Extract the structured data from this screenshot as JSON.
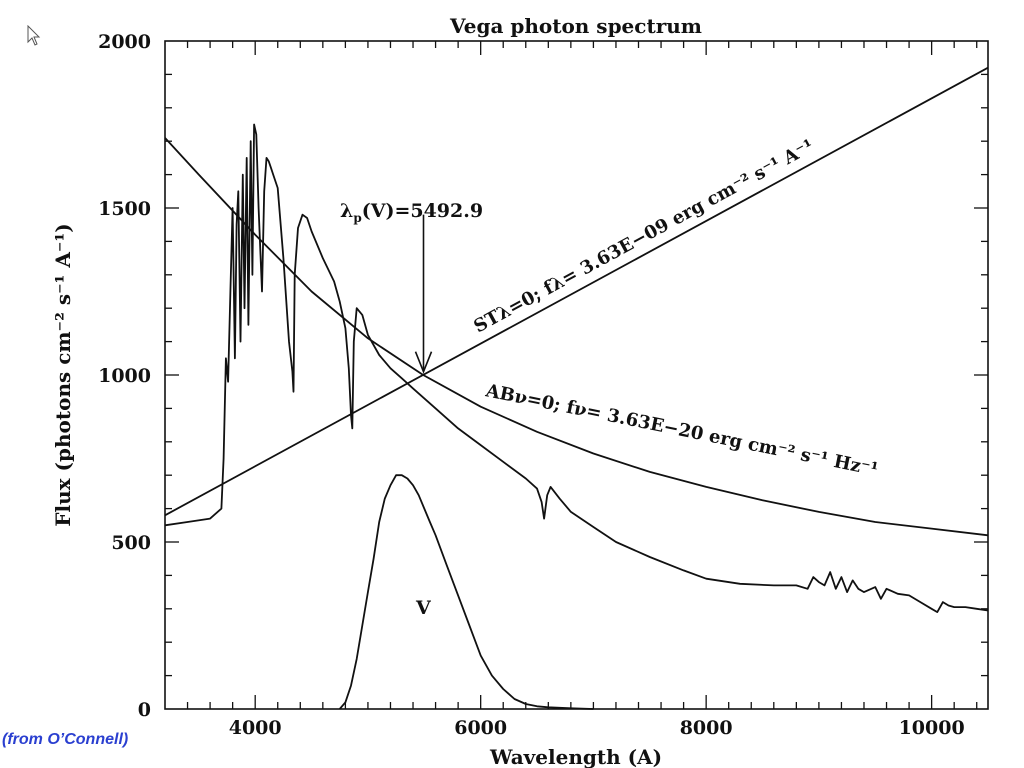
{
  "credit": "(from O’Connell)",
  "chart_data": {
    "type": "line",
    "title": "Vega photon spectrum",
    "xlabel": "Wavelength (A)",
    "ylabel": "Flux (photons cm⁻² s⁻¹ A⁻¹)",
    "xlim": [
      3200,
      10500
    ],
    "ylim": [
      0,
      2000
    ],
    "x_ticks": [
      4000,
      6000,
      8000,
      10000
    ],
    "y_ticks": [
      0,
      500,
      1000,
      1500,
      2000
    ],
    "grid": false,
    "legend": "none",
    "series": [
      {
        "x": [
          3200,
          3400,
          3600,
          3700,
          3720,
          3740,
          3760,
          3780,
          3800,
          3820,
          3835,
          3850,
          3870,
          3890,
          3905,
          3925,
          3940,
          3960,
          3975,
          3990,
          4010,
          4030,
          4060,
          4080,
          4100,
          4120,
          4140,
          4160,
          4200,
          4250,
          4300,
          4330,
          4340,
          4350,
          4380,
          4420,
          4460,
          4500,
          4600,
          4700,
          4750,
          4800,
          4830,
          4850,
          4861,
          4875,
          4900,
          4950,
          5000,
          5100,
          5200,
          5300,
          5400,
          5500,
          5600,
          5800,
          6000,
          6200,
          6400,
          6500,
          6540,
          6563,
          6590,
          6620,
          6700,
          6800,
          7000,
          7200,
          7500,
          7800,
          8000,
          8300,
          8600,
          8800,
          8900,
          8950,
          9000,
          9050,
          9100,
          9150,
          9200,
          9250,
          9300,
          9350,
          9400,
          9500,
          9550,
          9600,
          9700,
          9800,
          9900,
          10000,
          10050,
          10100,
          10150,
          10200,
          10300,
          10400,
          10500
        ],
        "y": [
          550,
          560,
          570,
          600,
          750,
          1050,
          980,
          1250,
          1500,
          1050,
          1450,
          1550,
          1100,
          1600,
          1200,
          1650,
          1150,
          1700,
          1300,
          1750,
          1720,
          1500,
          1250,
          1550,
          1650,
          1640,
          1620,
          1600,
          1560,
          1350,
          1100,
          1010,
          950,
          1300,
          1440,
          1480,
          1470,
          1430,
          1350,
          1280,
          1220,
          1140,
          1020,
          880,
          840,
          1100,
          1200,
          1180,
          1120,
          1060,
          1020,
          990,
          960,
          930,
          900,
          840,
          790,
          740,
          690,
          660,
          620,
          570,
          640,
          665,
          630,
          590,
          545,
          500,
          455,
          415,
          390,
          375,
          370,
          370,
          360,
          395,
          380,
          370,
          410,
          360,
          395,
          350,
          385,
          360,
          350,
          365,
          330,
          360,
          345,
          340,
          320,
          300,
          290,
          320,
          310,
          305,
          305,
          300,
          295
        ]
      },
      {
        "x": [
          3200,
          10500
        ],
        "y": [
          580,
          1920
        ]
      },
      {
        "x": [
          3200,
          3500,
          4000,
          4500,
          5000,
          5490,
          6000,
          6500,
          7000,
          7500,
          8000,
          8500,
          9000,
          9500,
          10000,
          10500
        ],
        "y": [
          1710,
          1600,
          1420,
          1250,
          1110,
          1000,
          905,
          830,
          765,
          710,
          665,
          625,
          590,
          560,
          540,
          520
        ]
      },
      {
        "name": "V",
        "x": [
          4750,
          4800,
          4850,
          4900,
          4950,
          5000,
          5050,
          5100,
          5150,
          5200,
          5250,
          5300,
          5350,
          5400,
          5450,
          5500,
          5550,
          5600,
          5700,
          5800,
          5900,
          6000,
          6100,
          6200,
          6300,
          6400,
          6500,
          6600,
          6800,
          7000
        ],
        "y": [
          0,
          20,
          70,
          150,
          250,
          350,
          450,
          560,
          630,
          670,
          700,
          700,
          690,
          670,
          640,
          600,
          560,
          520,
          430,
          340,
          250,
          160,
          100,
          60,
          30,
          15,
          8,
          5,
          2,
          0
        ]
      }
    ],
    "annotations": {
      "lambda_label": "λ",
      "lambda_sub": "p",
      "lambda_text": "(V)=5492.9",
      "st_label_text": "STλ=0; fλ= 3.63E−09 erg cm⁻² s⁻¹ A⁻¹",
      "ab_label_text": "ABν=0; fν= 3.63E−20 erg cm⁻² s⁻¹ Hz⁻¹",
      "v_label": "V",
      "arrow_x": 5492.9,
      "arrow_from_y": 1480,
      "arrow_to_y": 1010
    }
  }
}
